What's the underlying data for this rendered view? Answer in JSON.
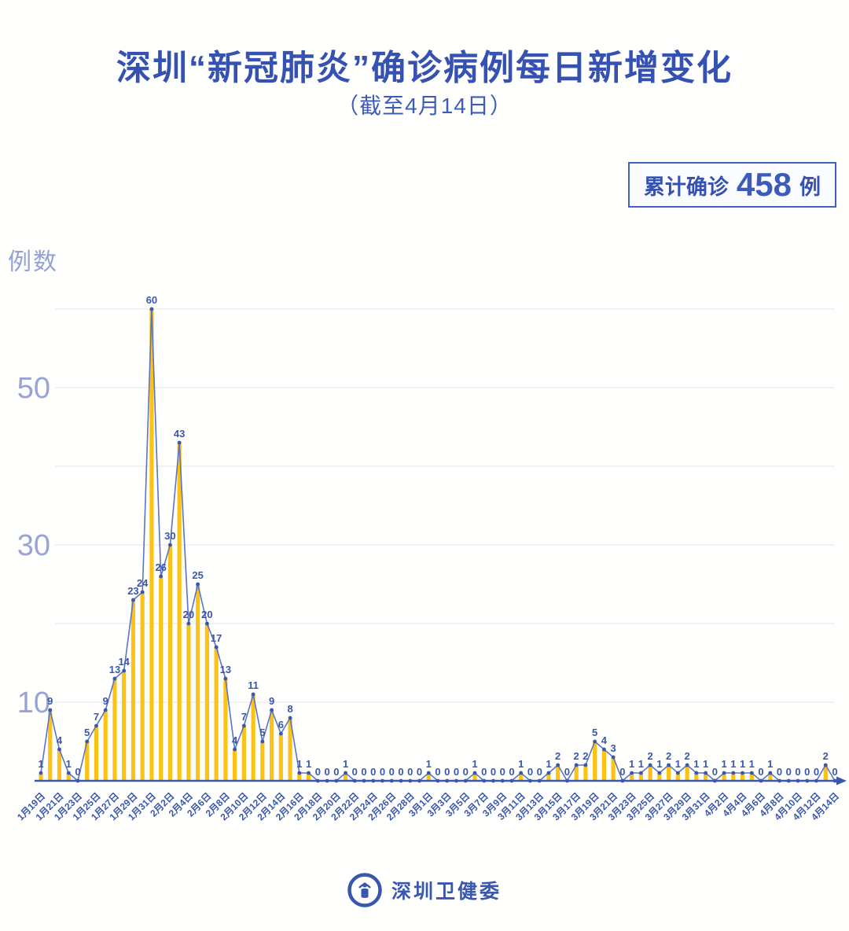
{
  "header": {
    "title": "深圳“新冠肺炎”确诊病例每日新增变化",
    "subtitle": "（截至4月14日）",
    "badge": {
      "prefix": "累计确诊",
      "value": "458",
      "suffix": "例"
    }
  },
  "chart_data": {
    "type": "bar",
    "line_overlay": true,
    "title": "深圳“新冠肺炎”确诊病例每日新增变化（截至4月14日）",
    "xlabel": "",
    "ylabel": "例数",
    "ylim": [
      0,
      62
    ],
    "gridlines": [
      10,
      20,
      30,
      40,
      50,
      60
    ],
    "yticks_labeled": [
      10,
      30,
      50
    ],
    "xtick_every": 2,
    "legend": "none",
    "cumulative_total": 458,
    "categories": [
      "1月19日",
      "1月20日",
      "1月21日",
      "1月22日",
      "1月23日",
      "1月24日",
      "1月25日",
      "1月26日",
      "1月27日",
      "1月28日",
      "1月29日",
      "1月30日",
      "1月31日",
      "2月1日",
      "2月2日",
      "2月3日",
      "2月4日",
      "2月5日",
      "2月6日",
      "2月7日",
      "2月8日",
      "2月9日",
      "2月10日",
      "2月11日",
      "2月12日",
      "2月13日",
      "2月14日",
      "2月15日",
      "2月16日",
      "2月17日",
      "2月18日",
      "2月19日",
      "2月20日",
      "2月21日",
      "2月22日",
      "2月23日",
      "2月24日",
      "2月25日",
      "2月26日",
      "2月27日",
      "2月28日",
      "2月29日",
      "3月1日",
      "3月2日",
      "3月3日",
      "3月4日",
      "3月5日",
      "3月6日",
      "3月7日",
      "3月8日",
      "3月9日",
      "3月10日",
      "3月11日",
      "3月12日",
      "3月13日",
      "3月14日",
      "3月15日",
      "3月16日",
      "3月17日",
      "3月18日",
      "3月19日",
      "3月20日",
      "3月21日",
      "3月22日",
      "3月23日",
      "3月24日",
      "3月25日",
      "3月26日",
      "3月27日",
      "3月28日",
      "3月29日",
      "3月30日",
      "3月31日",
      "4月1日",
      "4月2日",
      "4月3日",
      "4月4日",
      "4月5日",
      "4月6日",
      "4月7日",
      "4月8日",
      "4月9日",
      "4月10日",
      "4月11日",
      "4月12日",
      "4月13日",
      "4月14日"
    ],
    "values": [
      1,
      9,
      4,
      1,
      0,
      5,
      7,
      9,
      13,
      14,
      23,
      24,
      60,
      26,
      30,
      43,
      20,
      25,
      20,
      17,
      13,
      4,
      7,
      11,
      5,
      9,
      6,
      8,
      1,
      1,
      0,
      0,
      0,
      1,
      0,
      0,
      0,
      0,
      0,
      0,
      0,
      0,
      1,
      0,
      0,
      0,
      0,
      1,
      0,
      0,
      0,
      0,
      1,
      0,
      0,
      1,
      2,
      0,
      2,
      2,
      5,
      4,
      3,
      0,
      1,
      1,
      2,
      1,
      2,
      1,
      2,
      1,
      1,
      0,
      1,
      1,
      1,
      1,
      0,
      1,
      0,
      0,
      0,
      0,
      0,
      2,
      0
    ],
    "colors": {
      "bar": "#fcc216",
      "line": "#5974c8",
      "label": "#3a57b0",
      "axis_light": "#98a3d7",
      "grid": "#e9e9ee"
    }
  },
  "footer": {
    "brand": "深圳卫健委"
  }
}
